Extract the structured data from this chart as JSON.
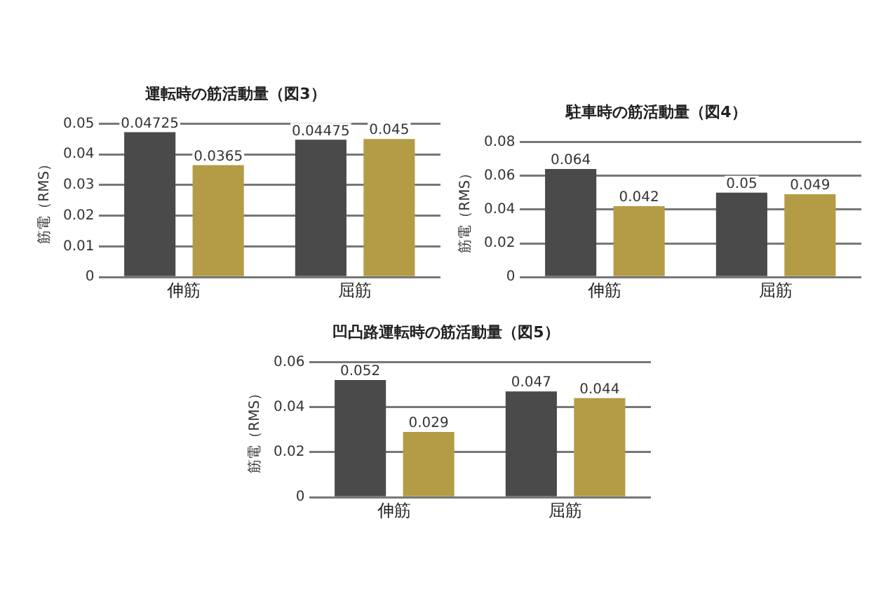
{
  "chart_data": [
    {
      "type": "bar",
      "title": "運転時の筋活動量（図3）",
      "ylabel": "筋電（RMS）",
      "categories": [
        "伸筋",
        "屈筋"
      ],
      "series": [
        {
          "color": "#4a4a4a",
          "values": [
            0.04725,
            0.04475
          ]
        },
        {
          "color": "#b39c45",
          "values": [
            0.0365,
            0.045
          ]
        }
      ],
      "ylim": [
        0,
        0.05
      ],
      "yticks": [
        0,
        0.01,
        0.02,
        0.03,
        0.04,
        0.05
      ],
      "grid": "y",
      "legend": false,
      "data_labels": true
    },
    {
      "type": "bar",
      "title": "駐車時の筋活動量（図4）",
      "ylabel": "筋電（RMS）",
      "categories": [
        "伸筋",
        "屈筋"
      ],
      "series": [
        {
          "color": "#4a4a4a",
          "values": [
            0.064,
            0.05
          ]
        },
        {
          "color": "#b39c45",
          "values": [
            0.042,
            0.049
          ]
        }
      ],
      "ylim": [
        0,
        0.08
      ],
      "yticks": [
        0,
        0.02,
        0.04,
        0.06,
        0.08
      ],
      "grid": "y",
      "legend": false,
      "data_labels": true
    },
    {
      "type": "bar",
      "title": "凹凸路運転時の筋活動量（図5）",
      "ylabel": "筋電（RMS）",
      "categories": [
        "伸筋",
        "屈筋"
      ],
      "series": [
        {
          "color": "#4a4a4a",
          "values": [
            0.052,
            0.047
          ]
        },
        {
          "color": "#b39c45",
          "values": [
            0.029,
            0.044
          ]
        }
      ],
      "ylim": [
        0,
        0.06
      ],
      "yticks": [
        0,
        0.02,
        0.04,
        0.06
      ],
      "grid": "y",
      "legend": false,
      "data_labels": true
    }
  ]
}
